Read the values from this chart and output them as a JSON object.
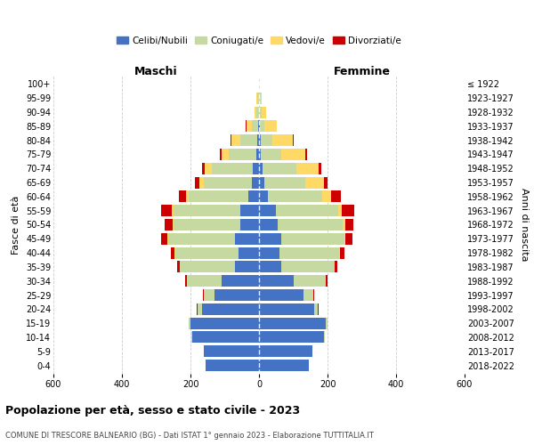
{
  "age_groups": [
    "0-4",
    "5-9",
    "10-14",
    "15-19",
    "20-24",
    "25-29",
    "30-34",
    "35-39",
    "40-44",
    "45-49",
    "50-54",
    "55-59",
    "60-64",
    "65-69",
    "70-74",
    "75-79",
    "80-84",
    "85-89",
    "90-94",
    "95-99",
    "100+"
  ],
  "birth_years": [
    "2018-2022",
    "2013-2017",
    "2008-2012",
    "2003-2007",
    "1998-2002",
    "1993-1997",
    "1988-1992",
    "1983-1987",
    "1978-1982",
    "1973-1977",
    "1968-1972",
    "1963-1967",
    "1958-1962",
    "1953-1957",
    "1948-1952",
    "1943-1947",
    "1938-1942",
    "1933-1937",
    "1928-1932",
    "1923-1927",
    "≤ 1922"
  ],
  "males": {
    "celibi": [
      155,
      160,
      195,
      200,
      165,
      130,
      110,
      70,
      60,
      70,
      55,
      55,
      30,
      20,
      18,
      8,
      5,
      2,
      1,
      1,
      0
    ],
    "coniugati": [
      1,
      1,
      3,
      5,
      15,
      30,
      100,
      160,
      185,
      195,
      195,
      195,
      175,
      140,
      120,
      80,
      50,
      20,
      8,
      4,
      1
    ],
    "vedovi": [
      0,
      0,
      0,
      0,
      0,
      1,
      1,
      1,
      1,
      2,
      3,
      5,
      8,
      15,
      20,
      20,
      25,
      15,
      5,
      2,
      0
    ],
    "divorziati": [
      0,
      0,
      0,
      0,
      1,
      2,
      4,
      8,
      12,
      18,
      22,
      30,
      20,
      12,
      8,
      5,
      3,
      2,
      0,
      0,
      0
    ]
  },
  "females": {
    "nubili": [
      145,
      155,
      190,
      195,
      160,
      130,
      100,
      65,
      60,
      65,
      55,
      50,
      25,
      15,
      10,
      6,
      4,
      2,
      1,
      1,
      0
    ],
    "coniugate": [
      1,
      1,
      3,
      5,
      12,
      28,
      95,
      155,
      175,
      185,
      190,
      180,
      160,
      120,
      100,
      60,
      35,
      14,
      6,
      3,
      1
    ],
    "vedove": [
      0,
      0,
      0,
      0,
      0,
      1,
      1,
      1,
      2,
      3,
      6,
      12,
      25,
      55,
      65,
      70,
      60,
      35,
      15,
      4,
      1
    ],
    "divorziate": [
      0,
      0,
      0,
      0,
      1,
      2,
      4,
      8,
      12,
      20,
      25,
      35,
      30,
      10,
      8,
      5,
      3,
      2,
      0,
      0,
      0
    ]
  },
  "colors": {
    "celibi_nubili": "#4472C4",
    "coniugati": "#C5D9A0",
    "vedovi": "#FFD966",
    "divorziati": "#CC0000"
  },
  "xlim": 600,
  "title": "Popolazione per età, sesso e stato civile - 2023",
  "subtitle": "COMUNE DI TRESCORE BALNEARIO (BG) - Dati ISTAT 1° gennaio 2023 - Elaborazione TUTTITALIA.IT",
  "ylabel_left": "Fasce di età",
  "ylabel_right": "Anni di nascita",
  "xlabel_left": "Maschi",
  "xlabel_right": "Femmine"
}
